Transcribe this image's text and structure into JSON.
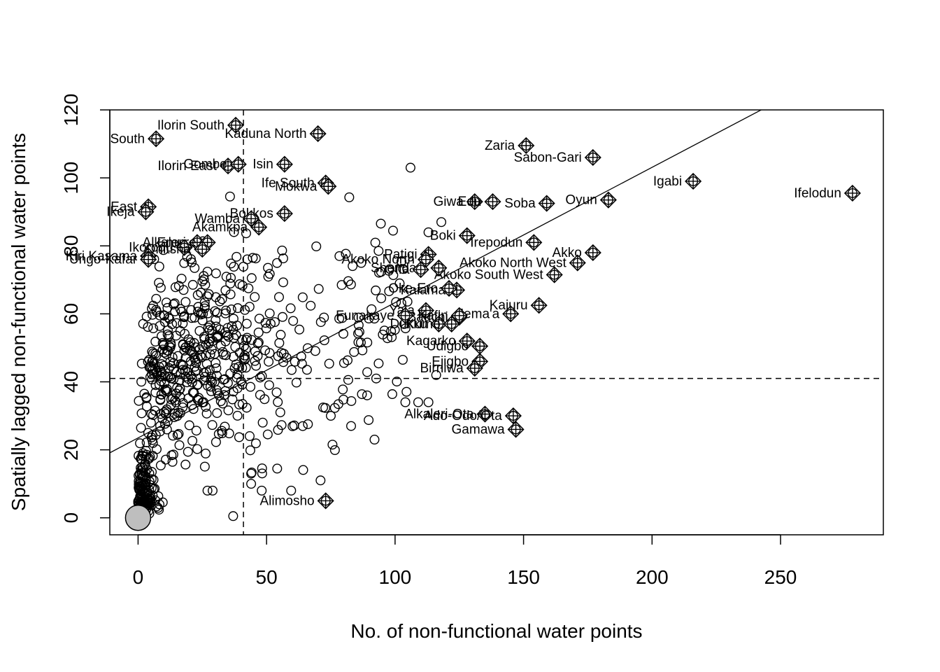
{
  "chart_data": {
    "type": "scatter",
    "title": "",
    "xlabel": "No. of non-functional water points",
    "ylabel": "Spatially lagged non-functional water points",
    "xlim": [
      -11,
      290
    ],
    "ylim": [
      -5,
      120
    ],
    "x_ticks": [
      0,
      50,
      100,
      150,
      200,
      250
    ],
    "y_ticks": [
      0,
      20,
      40,
      60,
      80,
      100,
      120
    ],
    "mean_x": 41,
    "mean_y": 41,
    "regression": {
      "intercept": 23.5,
      "slope": 0.398
    },
    "grid": false,
    "legend": "none",
    "colors": {
      "points": "#000000",
      "zero_marker_fill": "#bebebe"
    },
    "zero_marker": {
      "x": 0,
      "y": 0
    },
    "influential_points": [
      {
        "label": "Ilorin South",
        "x": 38,
        "y": 115.5
      },
      {
        "label": "South",
        "x": 7,
        "y": 111.5
      },
      {
        "label": "Kaduna North",
        "x": 70,
        "y": 113
      },
      {
        "label": "Ilorin East",
        "x": 35,
        "y": 103.5
      },
      {
        "label": "Gombe",
        "x": 39,
        "y": 104
      },
      {
        "label": "Isin",
        "x": 57,
        "y": 104
      },
      {
        "label": "Ife South",
        "x": 73,
        "y": 98.5
      },
      {
        "label": "Mokwa",
        "x": 74,
        "y": 97.5
      },
      {
        "label": "Zaria",
        "x": 151,
        "y": 109.5
      },
      {
        "label": "Sabon-Gari",
        "x": 177,
        "y": 106
      },
      {
        "label": "Igabi",
        "x": 216,
        "y": 99
      },
      {
        "label": "Ifelodun",
        "x": 278,
        "y": 95.5
      },
      {
        "label": "Oyun",
        "x": 183,
        "y": 93.5
      },
      {
        "label": "Soba",
        "x": 159,
        "y": 92.5
      },
      {
        "label": "Giwa",
        "x": 131,
        "y": 93
      },
      {
        "label": "Edu",
        "x": 138,
        "y": 93
      },
      {
        "label": "East",
        "x": 4,
        "y": 91.5
      },
      {
        "label": "Ikeja",
        "x": 3,
        "y": 90
      },
      {
        "label": "Bokkos",
        "x": 57,
        "y": 89.5
      },
      {
        "label": "Wamba",
        "x": 44,
        "y": 88
      },
      {
        "label": "Akamkpa",
        "x": 47,
        "y": 85.5
      },
      {
        "label": "Boki",
        "x": 128,
        "y": 83
      },
      {
        "label": "Irepodun",
        "x": 154,
        "y": 81
      },
      {
        "label": "Akko",
        "x": 177,
        "y": 78
      },
      {
        "label": "Alkaleri",
        "x": 23,
        "y": 81
      },
      {
        "label": "Emure",
        "x": 27,
        "y": 81
      },
      {
        "label": "Ikorodu",
        "x": 18,
        "y": 79.5
      },
      {
        "label": "Onitsha",
        "x": 25,
        "y": 79
      },
      {
        "label": "Kiri Kasama",
        "x": 4,
        "y": 77
      },
      {
        "label": "Ungo-Kafar",
        "x": 4,
        "y": 76
      },
      {
        "label": "Patigi",
        "x": 113,
        "y": 77.5
      },
      {
        "label": "Akoko North",
        "x": 112,
        "y": 76
      },
      {
        "label": "Akoko North West",
        "x": 171,
        "y": 75
      },
      {
        "label": "Akoko South West",
        "x": 162,
        "y": 71.5
      },
      {
        "label": "Shendam",
        "x": 117,
        "y": 73.5
      },
      {
        "label": "Offa",
        "x": 110,
        "y": 73
      },
      {
        "label": "Kaiama",
        "x": 124,
        "y": 67
      },
      {
        "label": "Oke-Ero",
        "x": 121,
        "y": 67.5
      },
      {
        "label": "Kajuru",
        "x": 156,
        "y": 62.5
      },
      {
        "label": "Jema'a",
        "x": 145,
        "y": 60
      },
      {
        "label": "Yala",
        "x": 112,
        "y": 61
      },
      {
        "label": "Bauchi",
        "x": 125,
        "y": 59
      },
      {
        "label": "Funakaye",
        "x": 104,
        "y": 59.5
      },
      {
        "label": "Dukku",
        "x": 117,
        "y": 57
      },
      {
        "label": "Kumo",
        "x": 122,
        "y": 57
      },
      {
        "label": "Kafin",
        "x": 125,
        "y": 59.5
      },
      {
        "label": "Kagarko",
        "x": 128,
        "y": 52
      },
      {
        "label": "Udigbo",
        "x": 133,
        "y": 50.5
      },
      {
        "label": "Ejigbo",
        "x": 133,
        "y": 46
      },
      {
        "label": "Birniwa",
        "x": 131,
        "y": 44
      },
      {
        "label": "Alkaleri-Ota",
        "x": 135,
        "y": 30.5
      },
      {
        "label": "Ado-Odo/Ota",
        "x": 146,
        "y": 30
      },
      {
        "label": "Gamawa",
        "x": 147,
        "y": 26
      },
      {
        "label": "Alimosho",
        "x": 73,
        "y": 5
      }
    ]
  }
}
